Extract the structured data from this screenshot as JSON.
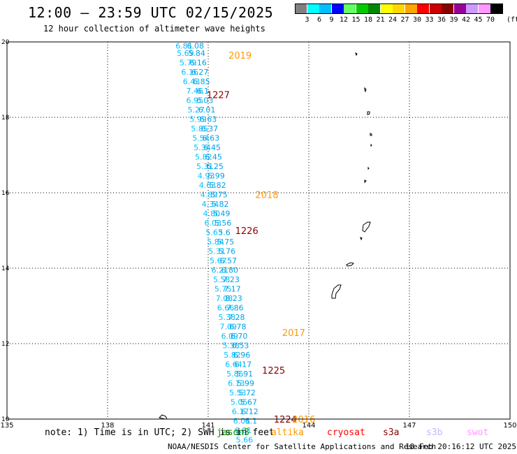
{
  "header": {
    "title": "12:00 – 23:59 UTC 02/15/2025",
    "subtitle": "12 hour collection of altimeter wave heights"
  },
  "colorbar": {
    "unit": "(ft)",
    "labels": [
      "3",
      "6",
      "9",
      "12",
      "15",
      "18",
      "21",
      "24",
      "27",
      "30",
      "33",
      "36",
      "39",
      "42",
      "45",
      "70"
    ],
    "colors": [
      "#808080",
      "#00ffff",
      "#00bfff",
      "#0000ff",
      "#66ff66",
      "#00cc00",
      "#008800",
      "#ffff00",
      "#ffd700",
      "#ffa500",
      "#ff0000",
      "#cc0000",
      "#880000",
      "#990099",
      "#cc99ff",
      "#ff99ff",
      "#000000"
    ]
  },
  "map": {
    "lat_range": [
      10,
      20
    ],
    "lon_range": [
      135,
      150
    ],
    "lat_ticks": [
      "20",
      "18",
      "16",
      "14",
      "12",
      "10"
    ],
    "lon_ticks": [
      "135",
      "138",
      "141",
      "144",
      "147",
      "150"
    ],
    "track_a": [
      {
        "v": "6.81",
        "lat": 19.9,
        "lon": 140.28
      },
      {
        "v": "5.69",
        "lat": 19.7,
        "lon": 140.32
      },
      {
        "v": "5.79",
        "lat": 19.45,
        "lon": 140.4
      },
      {
        "v": "6.16",
        "lat": 19.2,
        "lon": 140.45
      },
      {
        "v": "6.43",
        "lat": 18.95,
        "lon": 140.5
      },
      {
        "v": "7.46",
        "lat": 18.7,
        "lon": 140.6
      },
      {
        "v": "6.95",
        "lat": 18.45,
        "lon": 140.6
      },
      {
        "v": "5.27",
        "lat": 18.2,
        "lon": 140.64
      },
      {
        "v": "5.99",
        "lat": 17.95,
        "lon": 140.7
      },
      {
        "v": "5.85",
        "lat": 17.7,
        "lon": 140.74
      },
      {
        "v": "5.54",
        "lat": 17.45,
        "lon": 140.78
      },
      {
        "v": "5.34",
        "lat": 17.2,
        "lon": 140.82
      },
      {
        "v": "5.82",
        "lat": 16.95,
        "lon": 140.86
      },
      {
        "v": "5.31",
        "lat": 16.7,
        "lon": 140.9
      },
      {
        "v": "4.93",
        "lat": 16.45,
        "lon": 140.94
      },
      {
        "v": "4.63",
        "lat": 16.2,
        "lon": 140.98
      },
      {
        "v": "4.89",
        "lat": 15.95,
        "lon": 141.02
      },
      {
        "v": "4.34",
        "lat": 15.7,
        "lon": 141.06
      },
      {
        "v": "4.80",
        "lat": 15.45,
        "lon": 141.1
      },
      {
        "v": "6.03",
        "lat": 15.2,
        "lon": 141.14
      },
      {
        "v": "5.63",
        "lat": 14.95,
        "lon": 141.18
      },
      {
        "v": "5.84",
        "lat": 14.7,
        "lon": 141.22
      },
      {
        "v": "5.31",
        "lat": 14.45,
        "lon": 141.26
      },
      {
        "v": "5.67",
        "lat": 14.2,
        "lon": 141.3
      },
      {
        "v": "6.21",
        "lat": 13.95,
        "lon": 141.35
      },
      {
        "v": "5.58",
        "lat": 13.7,
        "lon": 141.4
      },
      {
        "v": "5.75",
        "lat": 13.45,
        "lon": 141.44
      },
      {
        "v": "7.08",
        "lat": 13.2,
        "lon": 141.48
      },
      {
        "v": "6.66",
        "lat": 12.95,
        "lon": 141.52
      },
      {
        "v": "5.38",
        "lat": 12.7,
        "lon": 141.56
      },
      {
        "v": "7.09",
        "lat": 12.45,
        "lon": 141.6
      },
      {
        "v": "6.09",
        "lat": 12.2,
        "lon": 141.64
      },
      {
        "v": "5.38",
        "lat": 11.95,
        "lon": 141.68
      },
      {
        "v": "5.82",
        "lat": 11.7,
        "lon": 141.72
      },
      {
        "v": "6.64",
        "lat": 11.45,
        "lon": 141.76
      },
      {
        "v": "5.85",
        "lat": 11.2,
        "lon": 141.8
      },
      {
        "v": "6.13",
        "lat": 10.95,
        "lon": 141.84
      },
      {
        "v": "5.53",
        "lat": 10.7,
        "lon": 141.88
      },
      {
        "v": "5.05",
        "lat": 10.45,
        "lon": 141.92
      },
      {
        "v": "6.17",
        "lat": 10.2,
        "lon": 141.96
      },
      {
        "v": "6.01",
        "lat": 9.95,
        "lon": 142.0
      },
      {
        "v": "6.01",
        "lat": 9.7,
        "lon": 142.04
      },
      {
        "v": "5.66",
        "lat": 9.45,
        "lon": 142.08
      }
    ],
    "track_b": [
      {
        "v": "6.08",
        "lat": 19.9,
        "lon": 140.62
      },
      {
        "v": "5.84",
        "lat": 19.7,
        "lon": 140.66
      },
      {
        "v": "6.16",
        "lat": 19.45,
        "lon": 140.7
      },
      {
        "v": "6.27",
        "lat": 19.2,
        "lon": 140.75
      },
      {
        "v": "6.85",
        "lat": 18.95,
        "lon": 140.8
      },
      {
        "v": "6.1",
        "lat": 18.7,
        "lon": 140.84
      },
      {
        "v": "6.03",
        "lat": 18.45,
        "lon": 140.9
      },
      {
        "v": "6.01",
        "lat": 18.2,
        "lon": 140.96
      },
      {
        "v": "6.63",
        "lat": 17.95,
        "lon": 141.0
      },
      {
        "v": "6.37",
        "lat": 17.7,
        "lon": 141.04
      },
      {
        "v": "6.63",
        "lat": 17.45,
        "lon": 141.08
      },
      {
        "v": "6.45",
        "lat": 17.2,
        "lon": 141.12
      },
      {
        "v": "6.45",
        "lat": 16.95,
        "lon": 141.16
      },
      {
        "v": "6.25",
        "lat": 16.7,
        "lon": 141.2
      },
      {
        "v": "5.99",
        "lat": 16.45,
        "lon": 141.24
      },
      {
        "v": "5.82",
        "lat": 16.2,
        "lon": 141.28
      },
      {
        "v": "5.75",
        "lat": 15.95,
        "lon": 141.32
      },
      {
        "v": "5.82",
        "lat": 15.7,
        "lon": 141.36
      },
      {
        "v": "5.49",
        "lat": 15.45,
        "lon": 141.4
      },
      {
        "v": "5.56",
        "lat": 15.2,
        "lon": 141.44
      },
      {
        "v": "5.6",
        "lat": 14.95,
        "lon": 141.48
      },
      {
        "v": "5.75",
        "lat": 14.7,
        "lon": 141.52
      },
      {
        "v": "5.76",
        "lat": 14.45,
        "lon": 141.56
      },
      {
        "v": "6.57",
        "lat": 14.2,
        "lon": 141.6
      },
      {
        "v": "6.80",
        "lat": 13.95,
        "lon": 141.64
      },
      {
        "v": "7.23",
        "lat": 13.7,
        "lon": 141.68
      },
      {
        "v": "7.17",
        "lat": 13.45,
        "lon": 141.72
      },
      {
        "v": "8.23",
        "lat": 13.2,
        "lon": 141.76
      },
      {
        "v": "7.86",
        "lat": 12.95,
        "lon": 141.8
      },
      {
        "v": "7.28",
        "lat": 12.7,
        "lon": 141.84
      },
      {
        "v": "6.78",
        "lat": 12.45,
        "lon": 141.88
      },
      {
        "v": "6.70",
        "lat": 12.2,
        "lon": 141.92
      },
      {
        "v": "6.53",
        "lat": 11.95,
        "lon": 141.96
      },
      {
        "v": "6.96",
        "lat": 11.7,
        "lon": 142.0
      },
      {
        "v": "6.17",
        "lat": 11.45,
        "lon": 142.04
      },
      {
        "v": "5.91",
        "lat": 11.2,
        "lon": 142.08
      },
      {
        "v": "5.99",
        "lat": 10.95,
        "lon": 142.12
      },
      {
        "v": "5.72",
        "lat": 10.7,
        "lon": 142.16
      },
      {
        "v": "5.67",
        "lat": 10.45,
        "lon": 142.2
      },
      {
        "v": "6.12",
        "lat": 10.2,
        "lon": 142.24
      },
      {
        "v": "6.1",
        "lat": 9.95,
        "lon": 142.28
      }
    ],
    "time_labels": [
      {
        "t": "2019",
        "lat": 19.65,
        "lon": 141.95,
        "color": "#ff9900"
      },
      {
        "t": "1227",
        "lat": 18.6,
        "lon": 141.3,
        "color": "#880000"
      },
      {
        "t": "2018",
        "lat": 15.95,
        "lon": 142.75,
        "color": "#ff9900"
      },
      {
        "t": "1226",
        "lat": 15.0,
        "lon": 142.15,
        "color": "#880000"
      },
      {
        "t": "2017",
        "lat": 12.3,
        "lon": 143.55,
        "color": "#ff9900"
      },
      {
        "t": "1225",
        "lat": 11.3,
        "lon": 142.95,
        "color": "#880000"
      },
      {
        "t": "1224",
        "lat": 10.0,
        "lon": 143.3,
        "color": "#880000"
      },
      {
        "t": "2016",
        "lat": 10.0,
        "lon": 143.85,
        "color": "#ff9900"
      }
    ]
  },
  "note": "note: 1) Time is in UTC; 2) SWH is in feet",
  "legend": [
    {
      "name": "jason3",
      "color": "#009900"
    },
    {
      "name": "altika",
      "color": "#ff9900"
    },
    {
      "name": "cryosat",
      "color": "#ff0000"
    },
    {
      "name": "s3a",
      "color": "#880000"
    },
    {
      "name": "s3b",
      "color": "#bbbbff"
    },
    {
      "name": "swot",
      "color": "#ff99ff"
    }
  ],
  "footer": {
    "agency": "NOAA/NESDIS Center for Satellite Applications and Research",
    "timestamp": "18 Feb 20:16:12 UTC 2025"
  }
}
